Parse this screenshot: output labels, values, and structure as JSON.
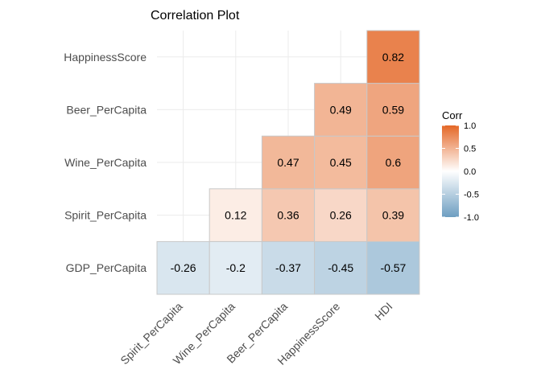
{
  "chart_data": {
    "type": "heatmap",
    "title": "Correlation Plot",
    "x_categories": [
      "Spirit_PerCapita",
      "Wine_PerCapita",
      "Beer_PerCapita",
      "HappinessScore",
      "HDI"
    ],
    "y_categories": [
      "GDP_PerCapita",
      "Spirit_PerCapita",
      "Wine_PerCapita",
      "Beer_PerCapita",
      "HappinessScore"
    ],
    "cells": [
      {
        "x": "Spirit_PerCapita",
        "y": "GDP_PerCapita",
        "value": -0.26,
        "label": "-0.26"
      },
      {
        "x": "Wine_PerCapita",
        "y": "GDP_PerCapita",
        "value": -0.2,
        "label": "-0.2"
      },
      {
        "x": "Beer_PerCapita",
        "y": "GDP_PerCapita",
        "value": -0.37,
        "label": "-0.37"
      },
      {
        "x": "HappinessScore",
        "y": "GDP_PerCapita",
        "value": -0.45,
        "label": "-0.45"
      },
      {
        "x": "HDI",
        "y": "GDP_PerCapita",
        "value": -0.57,
        "label": "-0.57"
      },
      {
        "x": "Wine_PerCapita",
        "y": "Spirit_PerCapita",
        "value": 0.12,
        "label": "0.12"
      },
      {
        "x": "Beer_PerCapita",
        "y": "Spirit_PerCapita",
        "value": 0.36,
        "label": "0.36"
      },
      {
        "x": "HappinessScore",
        "y": "Spirit_PerCapita",
        "value": 0.26,
        "label": "0.26"
      },
      {
        "x": "HDI",
        "y": "Spirit_PerCapita",
        "value": 0.39,
        "label": "0.39"
      },
      {
        "x": "Beer_PerCapita",
        "y": "Wine_PerCapita",
        "value": 0.47,
        "label": "0.47"
      },
      {
        "x": "HappinessScore",
        "y": "Wine_PerCapita",
        "value": 0.45,
        "label": "0.45"
      },
      {
        "x": "HDI",
        "y": "Wine_PerCapita",
        "value": 0.6,
        "label": "0.6"
      },
      {
        "x": "HappinessScore",
        "y": "Beer_PerCapita",
        "value": 0.49,
        "label": "0.49"
      },
      {
        "x": "HDI",
        "y": "Beer_PerCapita",
        "value": 0.59,
        "label": "0.59"
      },
      {
        "x": "HDI",
        "y": "HappinessScore",
        "value": 0.82,
        "label": "0.82"
      }
    ],
    "legend": {
      "title": "Corr",
      "position": "right",
      "range": [
        -1.0,
        1.0
      ],
      "ticks": [
        "1.0",
        "0.5",
        "0.0",
        "-0.5",
        "-1.0"
      ],
      "low_color": "#6D9EC1",
      "mid_color": "#FFFFFF",
      "high_color": "#E46726"
    },
    "grid": true
  }
}
